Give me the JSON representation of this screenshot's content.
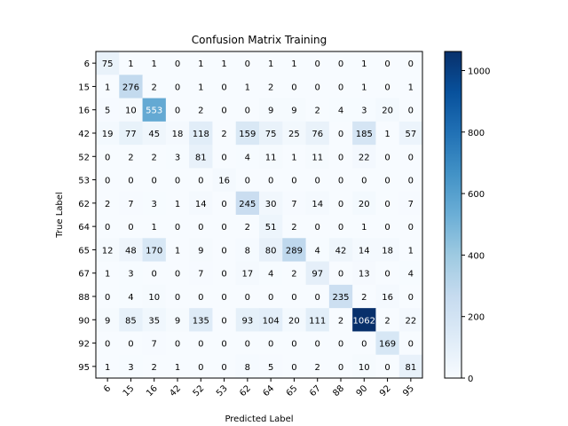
{
  "chart_data": {
    "type": "heatmap",
    "title": "Confusion Matrix Training",
    "xlabel": "Predicted Label",
    "ylabel": "True Label",
    "x_categories": [
      "6",
      "15",
      "16",
      "42",
      "52",
      "53",
      "62",
      "64",
      "65",
      "67",
      "88",
      "90",
      "92",
      "95"
    ],
    "y_categories": [
      "6",
      "15",
      "16",
      "42",
      "52",
      "53",
      "62",
      "64",
      "65",
      "67",
      "88",
      "90",
      "92",
      "95"
    ],
    "matrix": [
      [
        75,
        1,
        1,
        0,
        1,
        1,
        0,
        1,
        1,
        0,
        0,
        1,
        0,
        0
      ],
      [
        1,
        276,
        2,
        0,
        1,
        0,
        1,
        2,
        0,
        0,
        0,
        1,
        0,
        1
      ],
      [
        5,
        10,
        553,
        0,
        2,
        0,
        0,
        9,
        9,
        2,
        4,
        3,
        20,
        0
      ],
      [
        19,
        77,
        45,
        18,
        118,
        2,
        159,
        75,
        25,
        76,
        0,
        185,
        1,
        57
      ],
      [
        0,
        2,
        2,
        3,
        81,
        0,
        4,
        11,
        1,
        11,
        0,
        22,
        0,
        0
      ],
      [
        0,
        0,
        0,
        0,
        0,
        16,
        0,
        0,
        0,
        0,
        0,
        0,
        0,
        0
      ],
      [
        2,
        7,
        3,
        1,
        14,
        0,
        245,
        30,
        7,
        14,
        0,
        20,
        0,
        7
      ],
      [
        0,
        0,
        1,
        0,
        0,
        0,
        2,
        51,
        2,
        0,
        0,
        1,
        0,
        0
      ],
      [
        12,
        48,
        170,
        1,
        9,
        0,
        8,
        80,
        289,
        4,
        42,
        14,
        18,
        1
      ],
      [
        1,
        3,
        0,
        0,
        7,
        0,
        17,
        4,
        2,
        97,
        0,
        13,
        0,
        4
      ],
      [
        0,
        4,
        10,
        0,
        0,
        0,
        0,
        0,
        0,
        0,
        235,
        2,
        16,
        0
      ],
      [
        9,
        85,
        35,
        9,
        135,
        0,
        93,
        104,
        20,
        111,
        2,
        1062,
        2,
        22
      ],
      [
        0,
        0,
        7,
        0,
        0,
        0,
        0,
        0,
        0,
        0,
        0,
        0,
        169,
        0
      ],
      [
        1,
        3,
        2,
        1,
        0,
        0,
        8,
        5,
        0,
        2,
        0,
        10,
        0,
        81
      ]
    ],
    "colorbar": {
      "ticks": [
        0,
        200,
        400,
        600,
        800,
        1000
      ],
      "min": 0,
      "max": 1062,
      "colormap": "Blues"
    },
    "grid": false
  }
}
